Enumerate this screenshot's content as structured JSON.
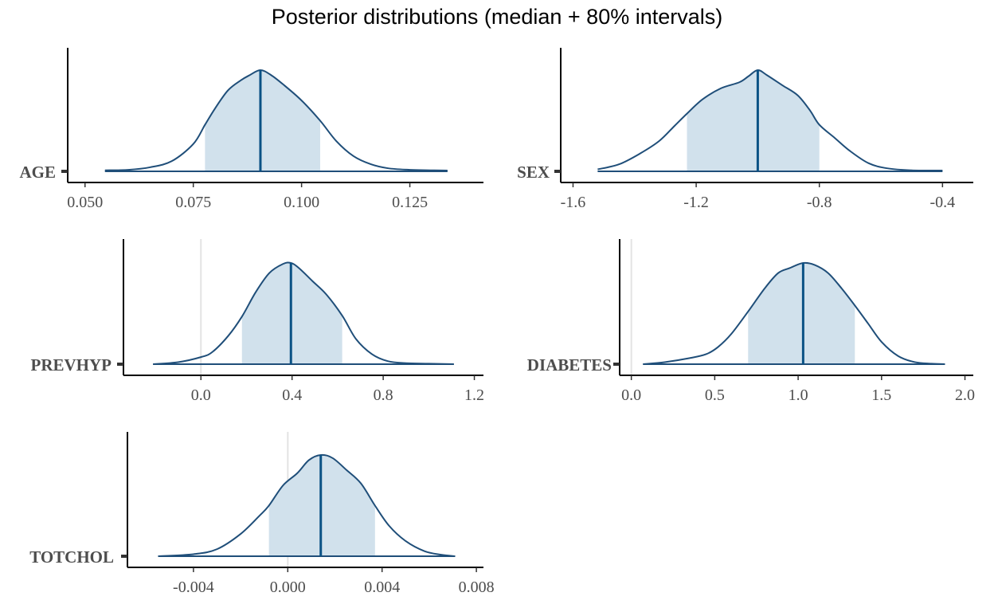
{
  "title": "Posterior distributions (median + 80% intervals)",
  "colors": {
    "outline": "#1f4e79",
    "median": "#0b5285",
    "fill": "#d1e1ec",
    "zero_line": "#e3e3e3",
    "axis": "#000000",
    "text": "#4d4d4d"
  },
  "chart_data": [
    {
      "type": "area",
      "parameter": "AGE",
      "xlim": [
        0.046,
        0.142
      ],
      "ticks": [
        0.05,
        0.075,
        0.1,
        0.125
      ],
      "tick_labels": [
        "0.050",
        "0.075",
        "0.100",
        "0.125"
      ],
      "median": 0.0905,
      "interval_80": [
        0.0777,
        0.1043
      ],
      "support": [
        0.0546,
        0.1337
      ],
      "density": {
        "x": [
          0.0546,
          0.06,
          0.065,
          0.07,
          0.075,
          0.0777,
          0.08,
          0.083,
          0.086,
          0.088,
          0.0905,
          0.093,
          0.096,
          0.1,
          0.1043,
          0.108,
          0.112,
          0.116,
          0.12,
          0.125,
          0.13,
          0.1337
        ],
        "y": [
          0.01,
          0.015,
          0.04,
          0.1,
          0.27,
          0.46,
          0.62,
          0.8,
          0.9,
          0.95,
          1.0,
          0.95,
          0.85,
          0.7,
          0.5,
          0.3,
          0.15,
          0.07,
          0.03,
          0.015,
          0.01,
          0.008
        ]
      }
    },
    {
      "type": "area",
      "parameter": "SEX",
      "xlim": [
        -1.64,
        -0.3
      ],
      "ticks": [
        -1.6,
        -1.2,
        -0.8,
        -0.4
      ],
      "tick_labels": [
        "-1.6",
        "-1.2",
        "-0.8",
        "-0.4"
      ],
      "median": -1.0,
      "interval_80": [
        -1.23,
        -0.8
      ],
      "support": [
        -1.52,
        -0.4
      ],
      "density": {
        "x": [
          -1.52,
          -1.45,
          -1.38,
          -1.32,
          -1.27,
          -1.23,
          -1.18,
          -1.12,
          -1.06,
          -1.03,
          -1.0,
          -0.97,
          -0.92,
          -0.87,
          -0.83,
          -0.8,
          -0.75,
          -0.7,
          -0.64,
          -0.58,
          -0.5,
          -0.4
        ],
        "y": [
          0.02,
          0.07,
          0.18,
          0.3,
          0.45,
          0.57,
          0.71,
          0.82,
          0.88,
          0.94,
          1.0,
          0.95,
          0.85,
          0.75,
          0.6,
          0.46,
          0.33,
          0.2,
          0.08,
          0.03,
          0.01,
          0.008
        ]
      }
    },
    {
      "type": "area",
      "parameter": "PREVHYP",
      "xlim": [
        -0.34,
        1.24
      ],
      "ticks": [
        0.0,
        0.4,
        0.8,
        1.2
      ],
      "tick_labels": [
        "0.0",
        "0.4",
        "0.8",
        "1.2"
      ],
      "median": 0.395,
      "interval_80": [
        0.18,
        0.62
      ],
      "support": [
        -0.21,
        1.11
      ],
      "density": {
        "x": [
          -0.21,
          -0.1,
          0.0,
          0.05,
          0.12,
          0.18,
          0.24,
          0.3,
          0.36,
          0.395,
          0.43,
          0.49,
          0.55,
          0.62,
          0.68,
          0.75,
          0.82,
          0.9,
          1.0,
          1.11
        ],
        "y": [
          0.0,
          0.02,
          0.07,
          0.12,
          0.28,
          0.47,
          0.71,
          0.9,
          0.99,
          1.0,
          0.95,
          0.82,
          0.69,
          0.48,
          0.25,
          0.1,
          0.03,
          0.01,
          0.005,
          0.0
        ]
      }
    },
    {
      "type": "area",
      "parameter": "DIABETES",
      "xlim": [
        -0.07,
        2.05
      ],
      "ticks": [
        0.0,
        0.5,
        1.0,
        1.5,
        2.0
      ],
      "tick_labels": [
        "0.0",
        "0.5",
        "1.0",
        "1.5",
        "2.0"
      ],
      "median": 1.03,
      "interval_80": [
        0.7,
        1.34
      ],
      "support": [
        0.07,
        1.88
      ],
      "density": {
        "x": [
          0.07,
          0.2,
          0.35,
          0.45,
          0.52,
          0.6,
          0.7,
          0.8,
          0.88,
          0.95,
          1.03,
          1.1,
          1.18,
          1.26,
          1.34,
          1.42,
          1.5,
          1.6,
          1.7,
          1.8,
          1.88
        ],
        "y": [
          0.0,
          0.02,
          0.06,
          0.1,
          0.17,
          0.3,
          0.52,
          0.75,
          0.9,
          0.95,
          1.0,
          0.98,
          0.9,
          0.75,
          0.58,
          0.4,
          0.22,
          0.08,
          0.02,
          0.005,
          0.0
        ]
      }
    },
    {
      "type": "area",
      "parameter": "TOTCHOL",
      "xlim": [
        -0.0068,
        0.0083
      ],
      "ticks": [
        -0.004,
        0.0,
        0.004,
        0.008
      ],
      "tick_labels": [
        "-0.004",
        "0.000",
        "0.004",
        "0.008"
      ],
      "median": 0.0014,
      "interval_80": [
        -0.0008,
        0.0037
      ],
      "support": [
        -0.0055,
        0.0071
      ],
      "density": {
        "x": [
          -0.0055,
          -0.004,
          -0.003,
          -0.002,
          -0.0012,
          -0.0008,
          -0.0002,
          0.0004,
          0.0009,
          0.0014,
          0.0019,
          0.0025,
          0.0031,
          0.0037,
          0.0043,
          0.005,
          0.0058,
          0.0065,
          0.0071
        ],
        "y": [
          0.0,
          0.02,
          0.07,
          0.22,
          0.4,
          0.5,
          0.7,
          0.82,
          0.95,
          1.0,
          0.97,
          0.85,
          0.72,
          0.5,
          0.3,
          0.15,
          0.05,
          0.015,
          0.0
        ]
      }
    }
  ]
}
